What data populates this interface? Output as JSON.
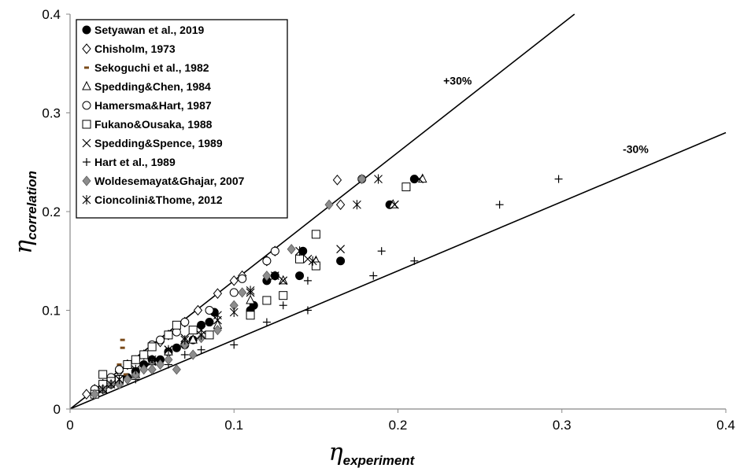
{
  "chart_data": {
    "type": "scatter",
    "title": "",
    "xlabel": {
      "symbol": "η",
      "subscript": "experiment"
    },
    "ylabel": {
      "symbol": "η",
      "subscript": "correlation"
    },
    "xlim": [
      0,
      0.4
    ],
    "ylim": [
      0,
      0.4
    ],
    "xticks": [
      0,
      0.1,
      0.2,
      0.3,
      0.4
    ],
    "yticks": [
      0,
      0.1,
      0.2,
      0.3,
      0.4
    ],
    "xtick_labels": [
      "0",
      "0.1",
      "0.2",
      "0.3",
      "0.4"
    ],
    "ytick_labels": [
      "0",
      "0.1",
      "0.2",
      "0.3",
      "0.4"
    ],
    "grid": false,
    "legend_placement": "top-left",
    "reference_lines": [
      {
        "label": "+30%",
        "slope": 1.3
      },
      {
        "label": "-30%",
        "slope": 0.7
      }
    ],
    "series": [
      {
        "name": "Setyawan et al., 2019",
        "marker": "filled-circle",
        "color": "#000000",
        "points": [
          [
            0.02,
            0.02
          ],
          [
            0.025,
            0.025
          ],
          [
            0.03,
            0.03
          ],
          [
            0.035,
            0.032
          ],
          [
            0.04,
            0.038
          ],
          [
            0.045,
            0.045
          ],
          [
            0.05,
            0.05
          ],
          [
            0.055,
            0.05
          ],
          [
            0.06,
            0.058
          ],
          [
            0.065,
            0.062
          ],
          [
            0.07,
            0.065
          ],
          [
            0.075,
            0.07
          ],
          [
            0.08,
            0.085
          ],
          [
            0.085,
            0.088
          ],
          [
            0.088,
            0.098
          ],
          [
            0.11,
            0.1
          ],
          [
            0.112,
            0.105
          ],
          [
            0.12,
            0.13
          ],
          [
            0.125,
            0.135
          ],
          [
            0.14,
            0.135
          ],
          [
            0.142,
            0.16
          ],
          [
            0.165,
            0.15
          ],
          [
            0.195,
            0.207
          ],
          [
            0.21,
            0.233
          ]
        ]
      },
      {
        "name": "Chisholm, 1973",
        "marker": "open-diamond",
        "color": "#000000",
        "points": [
          [
            0.01,
            0.015
          ],
          [
            0.015,
            0.02
          ],
          [
            0.02,
            0.025
          ],
          [
            0.025,
            0.03
          ],
          [
            0.03,
            0.038
          ],
          [
            0.035,
            0.045
          ],
          [
            0.045,
            0.055
          ],
          [
            0.055,
            0.068
          ],
          [
            0.06,
            0.075
          ],
          [
            0.07,
            0.088
          ],
          [
            0.078,
            0.1
          ],
          [
            0.09,
            0.117
          ],
          [
            0.1,
            0.13
          ],
          [
            0.105,
            0.135
          ],
          [
            0.12,
            0.15
          ],
          [
            0.125,
            0.16
          ],
          [
            0.165,
            0.207
          ],
          [
            0.163,
            0.232
          ]
        ]
      },
      {
        "name": "Sekoguchi et al., 1982",
        "marker": "dash",
        "color": "#7a4a1a",
        "points": [
          [
            0.032,
            0.07
          ],
          [
            0.032,
            0.062
          ],
          [
            0.03,
            0.045
          ],
          [
            0.034,
            0.035
          ]
        ]
      },
      {
        "name": "Spedding&Chen, 1984",
        "marker": "open-triangle",
        "color": "#000000",
        "points": [
          [
            0.02,
            0.02
          ],
          [
            0.03,
            0.028
          ],
          [
            0.04,
            0.035
          ],
          [
            0.05,
            0.048
          ],
          [
            0.06,
            0.058
          ],
          [
            0.075,
            0.07
          ],
          [
            0.09,
            0.085
          ],
          [
            0.11,
            0.11
          ],
          [
            0.13,
            0.13
          ],
          [
            0.15,
            0.15
          ],
          [
            0.197,
            0.207
          ],
          [
            0.215,
            0.233
          ]
        ]
      },
      {
        "name": "Hamersma&Hart, 1987",
        "marker": "open-circle",
        "color": "#000000",
        "points": [
          [
            0.015,
            0.02
          ],
          [
            0.02,
            0.025
          ],
          [
            0.025,
            0.032
          ],
          [
            0.03,
            0.04
          ],
          [
            0.04,
            0.05
          ],
          [
            0.05,
            0.065
          ],
          [
            0.055,
            0.07
          ],
          [
            0.065,
            0.078
          ],
          [
            0.07,
            0.088
          ],
          [
            0.085,
            0.1
          ],
          [
            0.1,
            0.118
          ],
          [
            0.105,
            0.132
          ],
          [
            0.12,
            0.15
          ],
          [
            0.125,
            0.16
          ],
          [
            0.178,
            0.233
          ]
        ]
      },
      {
        "name": "Fukano&Ousaka, 1988",
        "marker": "open-square",
        "color": "#000000",
        "points": [
          [
            0.015,
            0.015
          ],
          [
            0.02,
            0.025
          ],
          [
            0.02,
            0.035
          ],
          [
            0.025,
            0.028
          ],
          [
            0.03,
            0.03
          ],
          [
            0.035,
            0.045
          ],
          [
            0.04,
            0.05
          ],
          [
            0.045,
            0.055
          ],
          [
            0.05,
            0.063
          ],
          [
            0.06,
            0.075
          ],
          [
            0.065,
            0.085
          ],
          [
            0.075,
            0.08
          ],
          [
            0.085,
            0.075
          ],
          [
            0.11,
            0.095
          ],
          [
            0.12,
            0.11
          ],
          [
            0.13,
            0.115
          ],
          [
            0.14,
            0.152
          ],
          [
            0.15,
            0.145
          ],
          [
            0.15,
            0.177
          ],
          [
            0.205,
            0.225
          ]
        ]
      },
      {
        "name": "Spedding&Spence, 1989",
        "marker": "x",
        "color": "#000000",
        "points": [
          [
            0.02,
            0.02
          ],
          [
            0.03,
            0.03
          ],
          [
            0.04,
            0.038
          ],
          [
            0.05,
            0.048
          ],
          [
            0.06,
            0.06
          ],
          [
            0.07,
            0.072
          ],
          [
            0.08,
            0.08
          ],
          [
            0.09,
            0.09
          ],
          [
            0.11,
            0.118
          ],
          [
            0.13,
            0.13
          ],
          [
            0.145,
            0.152
          ],
          [
            0.165,
            0.162
          ],
          [
            0.198,
            0.207
          ],
          [
            0.213,
            0.233
          ]
        ]
      },
      {
        "name": "Hart et al., 1989",
        "marker": "plus",
        "color": "#000000",
        "points": [
          [
            0.015,
            0.015
          ],
          [
            0.02,
            0.02
          ],
          [
            0.03,
            0.025
          ],
          [
            0.04,
            0.03
          ],
          [
            0.05,
            0.04
          ],
          [
            0.06,
            0.045
          ],
          [
            0.07,
            0.055
          ],
          [
            0.08,
            0.06
          ],
          [
            0.1,
            0.065
          ],
          [
            0.12,
            0.088
          ],
          [
            0.13,
            0.105
          ],
          [
            0.145,
            0.1
          ],
          [
            0.145,
            0.13
          ],
          [
            0.185,
            0.135
          ],
          [
            0.19,
            0.16
          ],
          [
            0.21,
            0.15
          ],
          [
            0.262,
            0.207
          ],
          [
            0.298,
            0.233
          ]
        ]
      },
      {
        "name": "Woldesemayat&Ghajar, 2007",
        "marker": "filled-diamond",
        "color": "#8c8c8c",
        "points": [
          [
            0.015,
            0.015
          ],
          [
            0.02,
            0.02
          ],
          [
            0.025,
            0.025
          ],
          [
            0.03,
            0.025
          ],
          [
            0.035,
            0.03
          ],
          [
            0.04,
            0.035
          ],
          [
            0.045,
            0.04
          ],
          [
            0.05,
            0.04
          ],
          [
            0.055,
            0.045
          ],
          [
            0.06,
            0.05
          ],
          [
            0.065,
            0.04
          ],
          [
            0.07,
            0.065
          ],
          [
            0.075,
            0.055
          ],
          [
            0.08,
            0.072
          ],
          [
            0.09,
            0.08
          ],
          [
            0.1,
            0.105
          ],
          [
            0.105,
            0.118
          ],
          [
            0.12,
            0.135
          ],
          [
            0.135,
            0.162
          ],
          [
            0.158,
            0.207
          ],
          [
            0.178,
            0.233
          ]
        ]
      },
      {
        "name": "Cioncolini&Thome, 2012",
        "marker": "asterisk",
        "color": "#000000",
        "points": [
          [
            0.02,
            0.02
          ],
          [
            0.025,
            0.025
          ],
          [
            0.03,
            0.03
          ],
          [
            0.04,
            0.04
          ],
          [
            0.05,
            0.05
          ],
          [
            0.06,
            0.06
          ],
          [
            0.07,
            0.07
          ],
          [
            0.08,
            0.075
          ],
          [
            0.09,
            0.095
          ],
          [
            0.1,
            0.098
          ],
          [
            0.11,
            0.12
          ],
          [
            0.125,
            0.135
          ],
          [
            0.14,
            0.16
          ],
          [
            0.148,
            0.15
          ],
          [
            0.175,
            0.207
          ],
          [
            0.188,
            0.233
          ]
        ]
      }
    ]
  }
}
